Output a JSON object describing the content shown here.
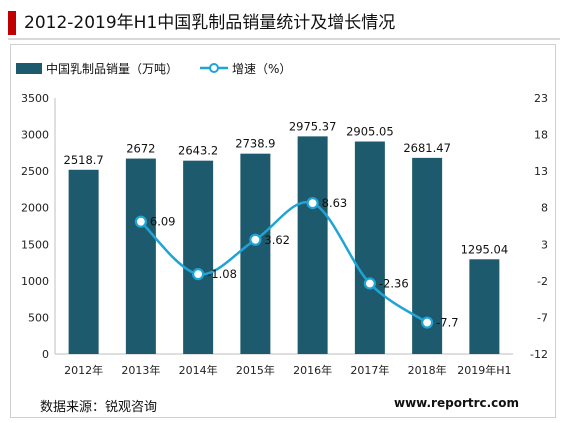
{
  "header": {
    "title": "2012-2019年H1中国乳制品销量统计及增长情况"
  },
  "footer": {
    "source": "数据来源：锐观咨询",
    "website": "www.reportrc.com"
  },
  "chart_data": {
    "type": "bar",
    "categories": [
      "2012年",
      "2013年",
      "2014年",
      "2015年",
      "2016年",
      "2017年",
      "2018年",
      "2019年H1"
    ],
    "series": [
      {
        "name": "中国乳制品销量（万吨）",
        "type": "bar",
        "axis": "left",
        "color": "#1e5a6e",
        "values": [
          2518.7,
          2672,
          2643.2,
          2738.9,
          2975.37,
          2905.05,
          2681.47,
          1295.04
        ],
        "labels": [
          "2518.7",
          "2672",
          "2643.2",
          "2738.9",
          "2975.37",
          "2905.05",
          "2681.47",
          "1295.04"
        ]
      },
      {
        "name": "增速（%）",
        "type": "line",
        "axis": "right",
        "color": "#1fa4d6",
        "smooth": true,
        "values": [
          null,
          6.09,
          -1.08,
          3.62,
          8.63,
          -2.36,
          -7.7,
          null
        ],
        "labels": [
          "",
          "6.09",
          "-1.08",
          "3.62",
          "8.63",
          "-2.36",
          "-7.7",
          ""
        ]
      }
    ],
    "y_left": {
      "min": 0,
      "max": 3500,
      "ticks": [
        0,
        500,
        1000,
        1500,
        2000,
        2500,
        3000,
        3500
      ]
    },
    "y_right": {
      "min": -12,
      "max": 23,
      "ticks": [
        -12,
        -7,
        -2,
        3,
        8,
        13,
        18,
        23
      ]
    },
    "legend_position": "top-left",
    "grid": false
  }
}
